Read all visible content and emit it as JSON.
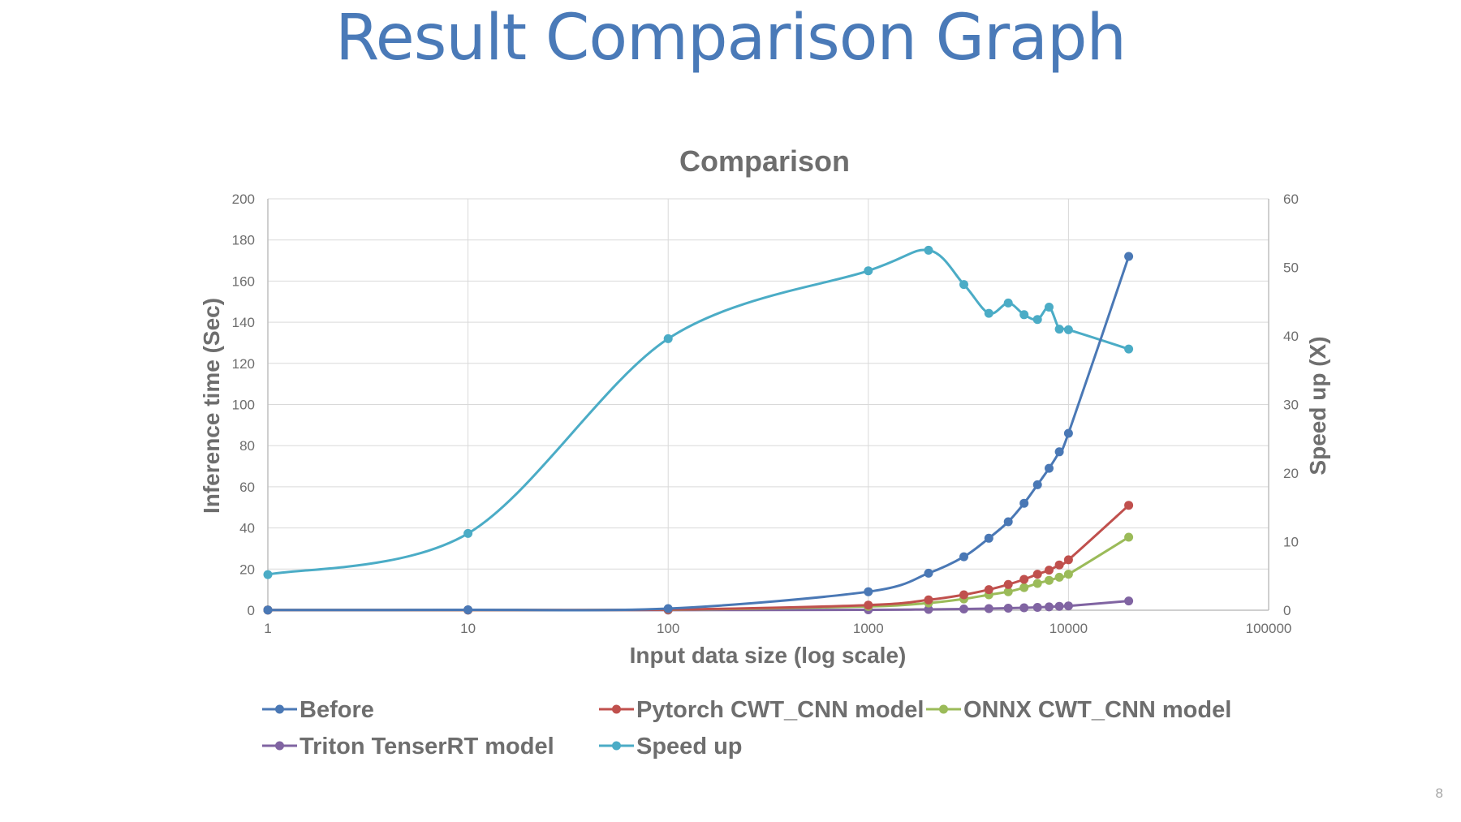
{
  "slide": {
    "title": "Result Comparison Graph",
    "page_number": "8"
  },
  "chart_data": {
    "type": "line",
    "title": "Comparison",
    "xlabel": "Input data size (log scale)",
    "ylabel": "Inference time (Sec)",
    "y2label": "Speed up (X)",
    "xscale": "log",
    "xlim": [
      1,
      100000
    ],
    "ylim": [
      0,
      200
    ],
    "y2lim": [
      0,
      60
    ],
    "xticks": [
      "1",
      "10",
      "100",
      "1000",
      "10000",
      "100000"
    ],
    "yticks": [
      "0",
      "20",
      "40",
      "60",
      "80",
      "100",
      "120",
      "140",
      "160",
      "180",
      "200"
    ],
    "y2ticks": [
      "0",
      "10",
      "20",
      "30",
      "40",
      "50",
      "60"
    ],
    "grid": true,
    "legend_position": "bottom",
    "series": [
      {
        "name": "Before",
        "axis": "left",
        "color": "#4a78b5",
        "smooth": true,
        "x": [
          1,
          10,
          100,
          1000,
          2000,
          3000,
          4000,
          5000,
          6000,
          7000,
          8000,
          9000,
          10000,
          20000
        ],
        "y": [
          0.1,
          0.2,
          0.8,
          9,
          18,
          26,
          35,
          43,
          52,
          61,
          69,
          77,
          86,
          172
        ]
      },
      {
        "name": "Pytorch CWT_CNN model",
        "axis": "left",
        "color": "#c0504d",
        "smooth": true,
        "x": [
          1,
          10,
          100,
          1000,
          2000,
          3000,
          4000,
          5000,
          6000,
          7000,
          8000,
          9000,
          10000,
          20000
        ],
        "y": [
          0.1,
          0.1,
          0.3,
          2.5,
          5,
          7.5,
          10,
          12.5,
          15,
          17.5,
          19.5,
          22,
          24.5,
          51
        ]
      },
      {
        "name": "ONNX CWT_CNN model",
        "axis": "left",
        "color": "#9bbb59",
        "smooth": true,
        "x": [
          1,
          10,
          100,
          1000,
          2000,
          3000,
          4000,
          5000,
          6000,
          7000,
          8000,
          9000,
          10000,
          20000
        ],
        "y": [
          0.1,
          0.1,
          0.2,
          1.8,
          3.5,
          5.5,
          7.5,
          9,
          11,
          13,
          14.5,
          16,
          17.5,
          35.5
        ]
      },
      {
        "name": "Triton TenserRT model",
        "axis": "left",
        "color": "#8064a2",
        "smooth": true,
        "x": [
          1,
          10,
          100,
          1000,
          2000,
          3000,
          4000,
          5000,
          6000,
          7000,
          8000,
          9000,
          10000,
          20000
        ],
        "y": [
          0.05,
          0.05,
          0.05,
          0.2,
          0.4,
          0.6,
          0.8,
          1,
          1.2,
          1.4,
          1.6,
          1.9,
          2.1,
          4.5
        ]
      },
      {
        "name": "Speed up",
        "axis": "right",
        "color": "#4bacc6",
        "smooth": true,
        "x": [
          1,
          10,
          100,
          1000,
          2000,
          3000,
          4000,
          5000,
          6000,
          7000,
          8000,
          9000,
          10000,
          20000
        ],
        "y": [
          5.2,
          11.2,
          39.6,
          49.5,
          52.5,
          47.5,
          43.3,
          44.8,
          43.1,
          42.4,
          44.2,
          41,
          40.9,
          38.1
        ]
      }
    ]
  }
}
